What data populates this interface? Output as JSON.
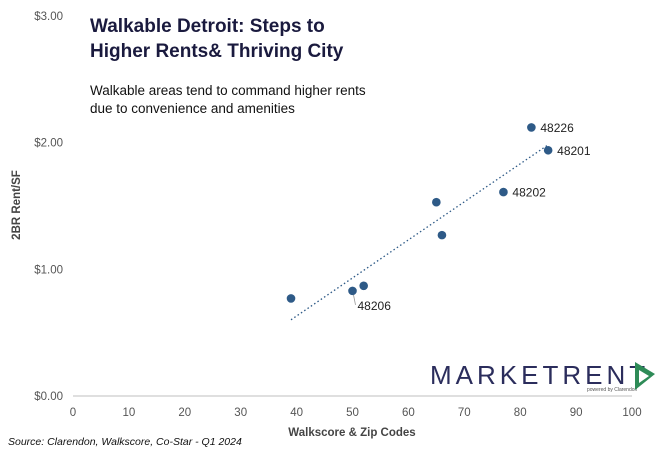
{
  "title_line1": "Walkable Detroit: Steps to",
  "title_line2": "Higher Rents& Thriving City",
  "subtitle_line1": "Walkable areas tend to command higher rents",
  "subtitle_line2": "due to convenience and amenities",
  "source": "Source: Clarendon, Walkscore, Co-Star - Q1 2024",
  "logo": {
    "text": "MARKETRENT",
    "tagline": "powered by Clarendon",
    "accent_color": "#2e8b57",
    "text_color": "#2b2d5c"
  },
  "chart_data": {
    "type": "scatter",
    "xlabel": "Walkscore & Zip Codes",
    "ylabel": "2BR Rent/SF",
    "xlim": [
      0,
      100
    ],
    "ylim": [
      0,
      3
    ],
    "x_ticks": [
      0,
      10,
      20,
      30,
      40,
      50,
      60,
      70,
      80,
      90,
      100
    ],
    "y_ticks": [
      0,
      1,
      2,
      3
    ],
    "y_tick_labels": [
      "$0.00",
      "$1.00",
      "$2.00",
      "$3.00"
    ],
    "grid": false,
    "trendline": true,
    "trendline_style": "dotted",
    "point_color": "#2e5a87",
    "trend_color": "#2e5a87",
    "points": [
      {
        "x": 39,
        "y": 0.77,
        "label": ""
      },
      {
        "x": 50,
        "y": 0.83,
        "label": "48206"
      },
      {
        "x": 52,
        "y": 0.87,
        "label": ""
      },
      {
        "x": 65,
        "y": 1.53,
        "label": ""
      },
      {
        "x": 66,
        "y": 1.27,
        "label": ""
      },
      {
        "x": 77,
        "y": 1.61,
        "label": "48202"
      },
      {
        "x": 82,
        "y": 2.12,
        "label": "48226"
      },
      {
        "x": 85,
        "y": 1.94,
        "label": "48201"
      }
    ]
  }
}
